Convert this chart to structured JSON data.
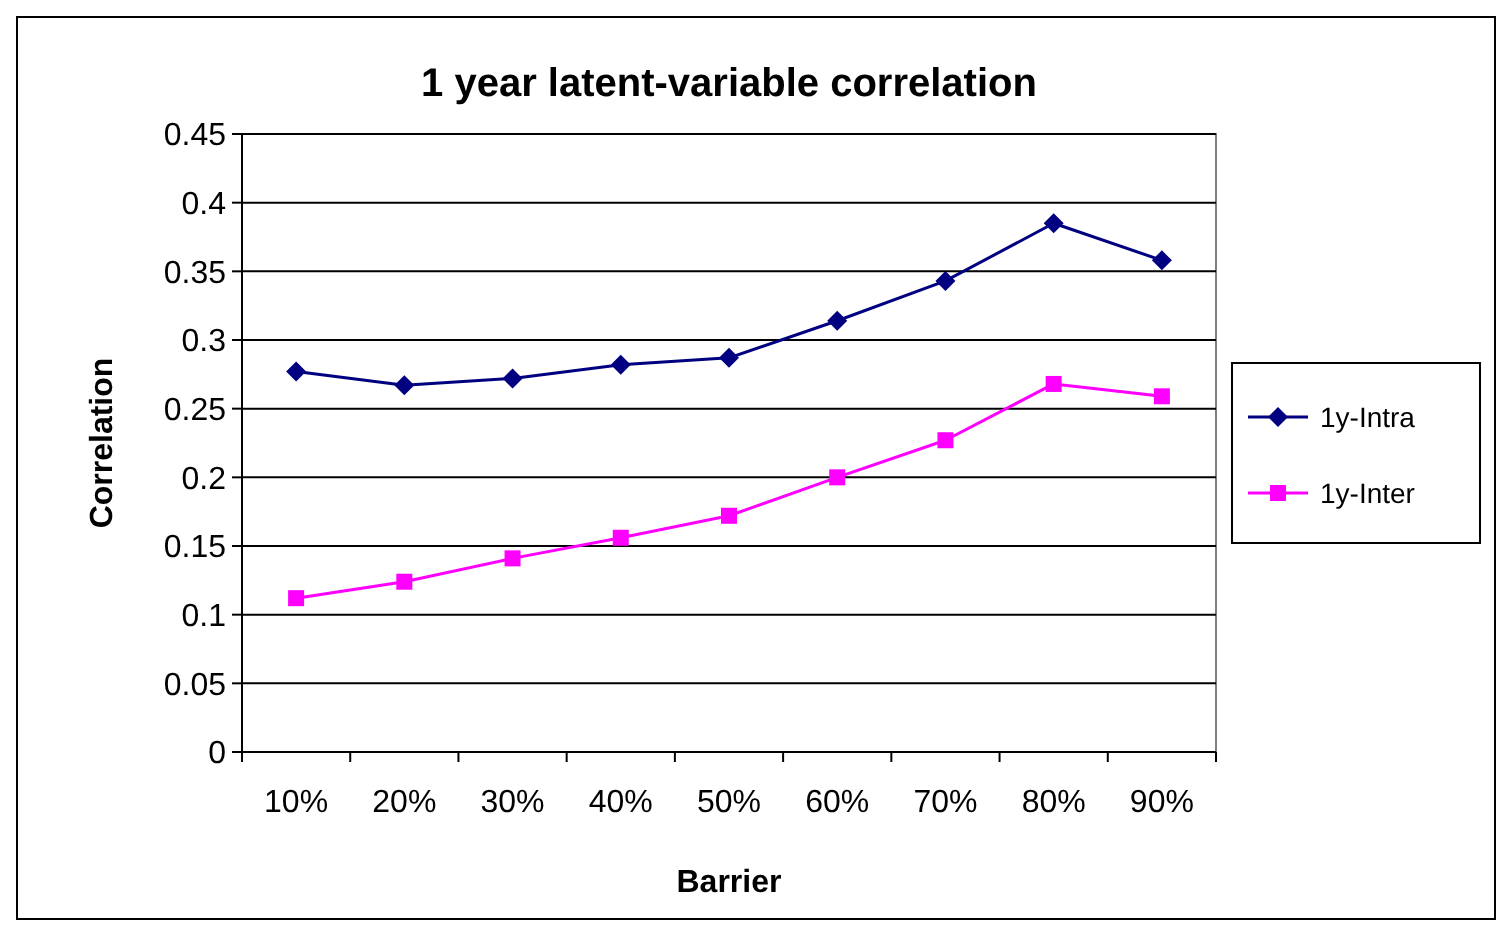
{
  "chart_data": {
    "type": "line",
    "title": "1 year latent-variable correlation",
    "xlabel": "Barrier",
    "ylabel": "Correlation",
    "categories": [
      "10%",
      "20%",
      "30%",
      "40%",
      "50%",
      "60%",
      "70%",
      "80%",
      "90%"
    ],
    "series": [
      {
        "name": "1y-Intra",
        "color": "#000080",
        "marker": "diamond",
        "values": [
          0.277,
          0.267,
          0.272,
          0.282,
          0.287,
          0.314,
          0.343,
          0.385,
          0.358
        ]
      },
      {
        "name": "1y-Inter",
        "color": "#ff00ff",
        "marker": "square",
        "values": [
          0.112,
          0.124,
          0.141,
          0.156,
          0.172,
          0.2,
          0.227,
          0.268,
          0.259
        ]
      }
    ],
    "ylim": [
      0,
      0.45
    ],
    "yticks": [
      0,
      0.05,
      0.1,
      0.15,
      0.2,
      0.25,
      0.3,
      0.35,
      0.4,
      0.45
    ],
    "grid": "y",
    "legend": "right"
  }
}
